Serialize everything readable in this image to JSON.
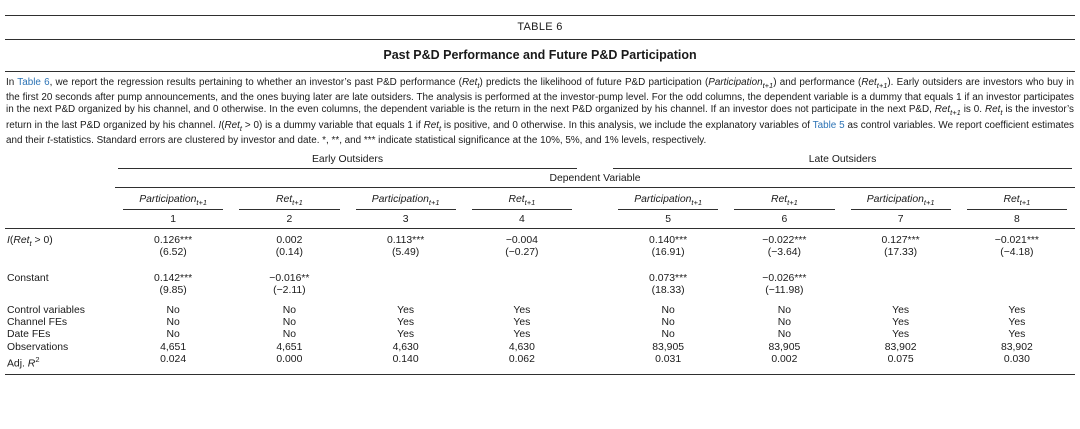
{
  "page": {
    "background": "#ffffff",
    "text_color": "#1a1a1a",
    "rule_color": "#2f2f2f"
  },
  "table": {
    "label": "TABLE 6",
    "title": "Past P&D Performance and Future P&D Participation",
    "link_color": "#2c73b5",
    "caption_html": "In <a class='tlink' data-name='table-6-link' data-interactable='true'>Table 6</a>, we report the regression results pertaining to whether an investor’s past P&amp;D performance (<i>Ret<sub>t</sub></i>) predicts the likelihood of future P&amp;D participation (<i>Participation<sub>t+1</sub></i>) and performance (<i>Ret<sub>t+1</sub></i>). Early outsiders are investors who buy in the first 20 seconds after pump announcements, and the ones buying later are late outsiders. The analysis is performed at the investor-pump level. For the odd columns, the dependent variable is a dummy that equals 1 if an investor participates in the next P&amp;D organized by his channel, and 0 otherwise. In the even columns, the dependent variable is the return in the next P&amp;D organized by his channel. If an investor does not participate in the next P&amp;D, <i>Ret<sub>t+1</sub></i> is 0. <i>Ret<sub>t</sub></i> is the investor’s return in the last P&amp;D organized by his channel. <i>I</i>(<i>Ret<sub>t</sub></i> &gt; 0) is a dummy variable that equals 1 if <i>Ret<sub>t</sub></i> is positive, and 0 otherwise. In this analysis, we include the explanatory variables of <a class='tlink' data-name='table-5-link' data-interactable='true'>Table 5</a> as control variables. We report coefficient estimates and their <i>t</i>-statistics. Standard errors are clustered by investor and date. *, **, and *** indicate statistical significance at the 10%, 5%, and 1% levels, respectively.",
    "groups": [
      {
        "label": "Early Outsiders"
      },
      {
        "label": "Late Outsiders"
      }
    ],
    "dependent_variable_label": "Dependent Variable",
    "columns": [
      {
        "header_html": "<i>Participation<sub>t+1</sub></i>",
        "number": "1"
      },
      {
        "header_html": "<i>Ret<sub>t+1</sub></i>",
        "number": "2"
      },
      {
        "header_html": "<i>Participation<sub>t+1</sub></i>",
        "number": "3"
      },
      {
        "header_html": "<i>Ret<sub>t+1</sub></i>",
        "number": "4"
      },
      {
        "header_html": "<i>Participation<sub>t+1</sub></i>",
        "number": "5"
      },
      {
        "header_html": "<i>Ret<sub>t+1</sub></i>",
        "number": "6"
      },
      {
        "header_html": "<i>Participation<sub>t+1</sub></i>",
        "number": "7"
      },
      {
        "header_html": "<i>Ret<sub>t+1</sub></i>",
        "number": "8"
      }
    ],
    "coef_rows": [
      {
        "label_html": "<i>I</i>(<i>Ret<sub>t</sub></i> &gt; 0)",
        "estimates": [
          "0.126***",
          "0.002",
          "0.113***",
          "−0.004",
          "0.140***",
          "−0.022***",
          "0.127***",
          "−0.021***"
        ],
        "tstats": [
          "(6.52)",
          "(0.14)",
          "(5.49)",
          "(−0.27)",
          "(16.91)",
          "(−3.64)",
          "(17.33)",
          "(−4.18)"
        ]
      },
      {
        "label_html": "Constant",
        "estimates": [
          "0.142***",
          "−0.016**",
          "",
          "",
          "0.073***",
          "−0.026***",
          "",
          ""
        ],
        "tstats": [
          "(9.85)",
          "(−2.11)",
          "",
          "",
          "(18.33)",
          "(−11.98)",
          "",
          ""
        ]
      }
    ],
    "info_rows": [
      {
        "label_html": "Control variables",
        "values": [
          "No",
          "No",
          "Yes",
          "Yes",
          "No",
          "No",
          "Yes",
          "Yes"
        ]
      },
      {
        "label_html": "Channel FEs",
        "values": [
          "No",
          "No",
          "Yes",
          "Yes",
          "No",
          "No",
          "Yes",
          "Yes"
        ]
      },
      {
        "label_html": "Date FEs",
        "values": [
          "No",
          "No",
          "Yes",
          "Yes",
          "No",
          "No",
          "Yes",
          "Yes"
        ]
      },
      {
        "label_html": "Observations",
        "values": [
          "4,651",
          "4,651",
          "4,630",
          "4,630",
          "83,905",
          "83,905",
          "83,902",
          "83,902"
        ]
      },
      {
        "label_html": "Adj. <i>R</i><sup>2</sup>",
        "values": [
          "0.024",
          "0.000",
          "0.140",
          "0.062",
          "0.031",
          "0.002",
          "0.075",
          "0.030"
        ]
      }
    ]
  }
}
